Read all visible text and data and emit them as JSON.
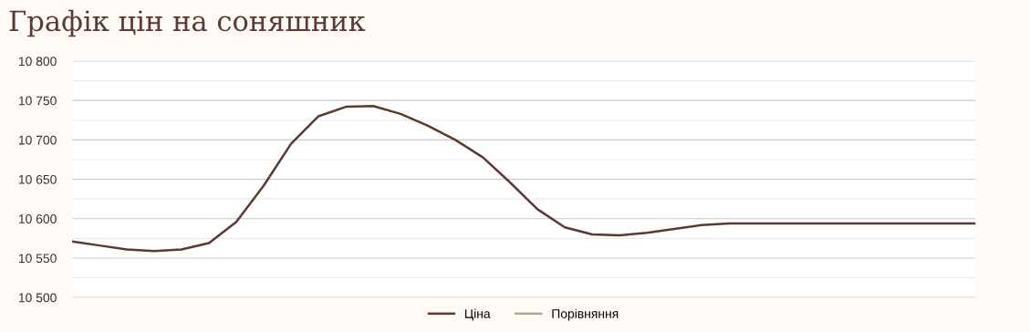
{
  "chart_data": {
    "type": "line",
    "title": "Графік цін на соняшник",
    "categories": [
      null,
      null,
      null,
      null,
      null,
      null,
      null,
      null,
      null,
      null,
      null,
      null,
      null,
      null,
      null,
      null,
      null,
      null,
      null,
      null,
      null,
      null,
      null,
      null,
      null,
      null,
      null,
      null,
      null,
      null,
      null,
      null,
      null,
      null
    ],
    "series": [
      {
        "name": "Ціна",
        "color": "#5b3a32",
        "values": [
          10571,
          10566,
          10561,
          10559,
          10561,
          10569,
          10596,
          10642,
          10695,
          10730,
          10742,
          10743,
          10733,
          10718,
          10700,
          10678,
          10646,
          10612,
          10589,
          10580,
          10579,
          10582,
          10587,
          10592,
          10594,
          10594,
          10594,
          10594,
          10594,
          10594,
          10594,
          10594,
          10594,
          10594
        ]
      },
      {
        "name": "Порівняння",
        "color": "#a3ad94",
        "values": [
          null,
          null,
          null,
          null,
          null,
          null,
          null,
          null,
          null,
          null,
          null,
          null,
          null,
          null,
          null,
          null,
          null,
          null,
          null,
          null,
          null,
          null,
          null,
          null,
          null,
          null,
          null,
          null,
          null,
          null,
          null,
          null,
          null,
          null
        ]
      }
    ],
    "ylim": [
      10500,
      10800
    ],
    "yticks": [
      {
        "value": 10500,
        "label": "10 500"
      },
      {
        "value": 10525,
        "label": null
      },
      {
        "value": 10550,
        "label": "10 550"
      },
      {
        "value": 10575,
        "label": null
      },
      {
        "value": 10600,
        "label": "10 600"
      },
      {
        "value": 10625,
        "label": null
      },
      {
        "value": 10650,
        "label": "10 650"
      },
      {
        "value": 10675,
        "label": null
      },
      {
        "value": 10700,
        "label": "10 700"
      },
      {
        "value": 10725,
        "label": null
      },
      {
        "value": 10750,
        "label": "10 750"
      },
      {
        "value": 10775,
        "label": null
      },
      {
        "value": 10800,
        "label": "10 800"
      }
    ],
    "grid": "y",
    "legend": "bottom",
    "marker": "none",
    "line_style": "solid"
  }
}
